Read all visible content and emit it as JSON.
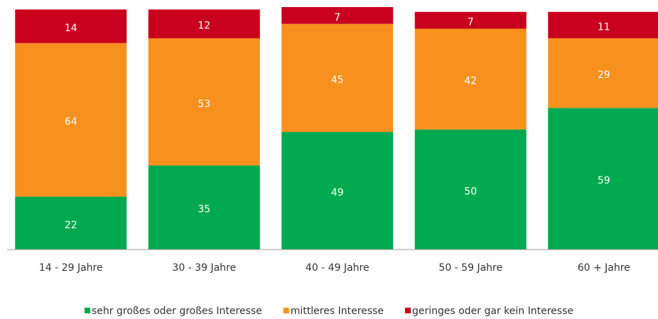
{
  "chart_data": {
    "type": "stacked_bar",
    "categories": [
      "14 - 29 Jahre",
      "30 - 39 Jahre",
      "40 - 49 Jahre",
      "50 - 59 Jahre",
      "60 + Jahre"
    ],
    "series": [
      {
        "name": "sehr großes oder großes Interesse",
        "color": "#00a94f",
        "values": [
          22,
          35,
          49,
          50,
          59
        ]
      },
      {
        "name": "mittleres Interesse",
        "color": "#f7901e",
        "values": [
          64,
          53,
          45,
          42,
          29
        ]
      },
      {
        "name": "geringes oder gar kein Interesse",
        "color": "#c8001e",
        "values": [
          14,
          12,
          7,
          7,
          11
        ]
      }
    ],
    "legend": "bottom"
  }
}
